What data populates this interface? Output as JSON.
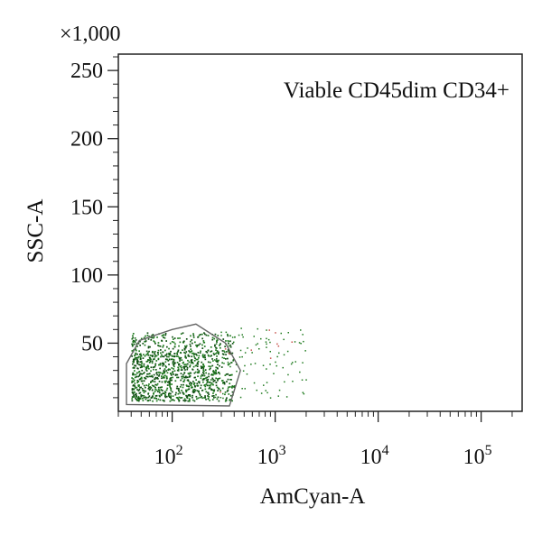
{
  "chart_data": {
    "type": "scatter",
    "title": "Viable CD45dim CD34+",
    "xlabel": "AmCyan-A",
    "ylabel": "SSC-A",
    "y_multiplier_label": "×1,000",
    "x_scale": "log",
    "xlim": [
      30,
      250000
    ],
    "ylim": [
      0,
      262
    ],
    "x_ticks": [
      {
        "value": 100,
        "base": "10",
        "exp": "2"
      },
      {
        "value": 1000,
        "base": "10",
        "exp": "3"
      },
      {
        "value": 10000,
        "base": "10",
        "exp": "4"
      },
      {
        "value": 100000,
        "base": "10",
        "exp": "5"
      }
    ],
    "y_ticks": [
      50,
      100,
      150,
      200,
      250
    ],
    "grid": false,
    "colors": {
      "dots": "#1e7a1e",
      "dots_dark": "#0f4f12",
      "gate": "#666666",
      "stray": "#c8504a"
    },
    "series": [
      {
        "population": "dense cluster",
        "x_range": [
          40,
          400
        ],
        "y_range": [
          8,
          58
        ],
        "approx_count": 1400
      },
      {
        "population": "sparse tail",
        "x_range": [
          250,
          2000
        ],
        "y_range": [
          10,
          62
        ],
        "approx_count": 120
      }
    ],
    "gate_polygon": [
      {
        "x": 36,
        "y": 5
      },
      {
        "x": 36,
        "y": 35
      },
      {
        "x": 48,
        "y": 52
      },
      {
        "x": 100,
        "y": 60
      },
      {
        "x": 170,
        "y": 64
      },
      {
        "x": 330,
        "y": 50
      },
      {
        "x": 460,
        "y": 30
      },
      {
        "x": 360,
        "y": 4
      }
    ]
  }
}
